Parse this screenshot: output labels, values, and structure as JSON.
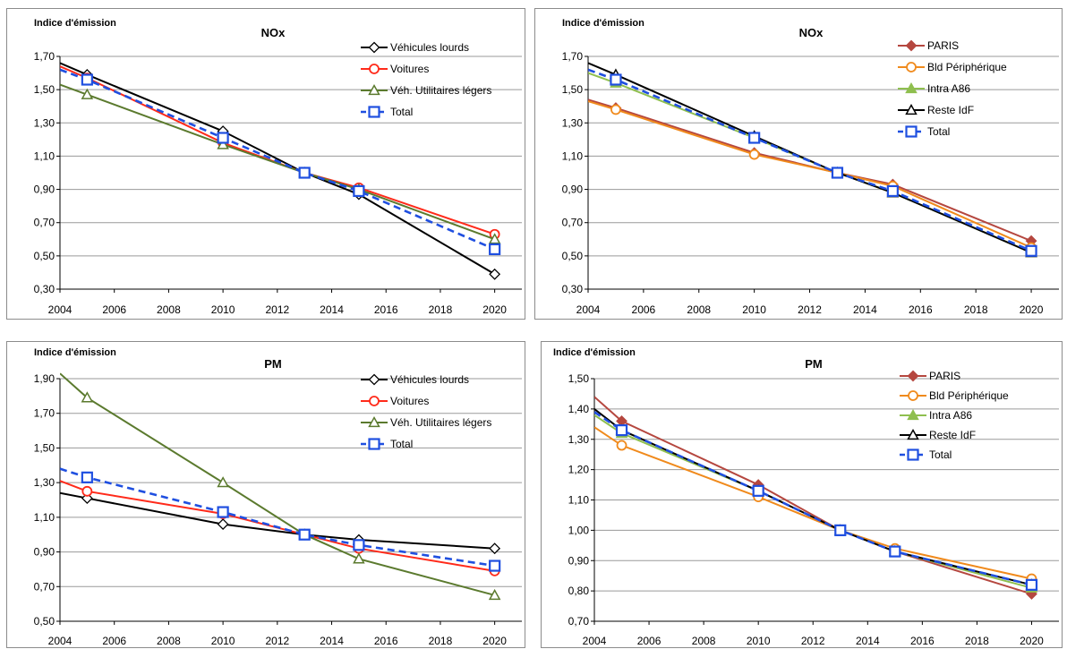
{
  "chart_data": [
    {
      "type": "line",
      "title": "NOx",
      "ylabel": "Indice d'émission",
      "ylim": [
        0.3,
        1.7
      ],
      "yticks": [
        "0,30",
        "0,50",
        "0,70",
        "0,90",
        "1,10",
        "1,30",
        "1,50",
        "1,70"
      ],
      "xlim": [
        2004,
        2021
      ],
      "xticks": [
        "2004",
        "2006",
        "2008",
        "2010",
        "2012",
        "2014",
        "2016",
        "2018",
        "2020"
      ],
      "grid": "horizontal",
      "legend": "top-right",
      "series": [
        {
          "name": "Véhicules lourds",
          "color": "#000000",
          "marker": "diamond-open",
          "dashed": false,
          "x": [
            2004,
            2005,
            2010,
            2013,
            2015,
            2020
          ],
          "values": [
            1.66,
            1.59,
            1.25,
            1.0,
            0.87,
            0.39
          ]
        },
        {
          "name": "Voitures",
          "color": "#ff2a1a",
          "marker": "circle-open",
          "dashed": false,
          "x": [
            2004,
            2005,
            2010,
            2013,
            2015,
            2020
          ],
          "values": [
            1.64,
            1.57,
            1.18,
            1.0,
            0.91,
            0.63
          ]
        },
        {
          "name": "Véh. Utilitaires légers",
          "color": "#5b7a2e",
          "marker": "triangle-open",
          "dashed": false,
          "x": [
            2004,
            2005,
            2010,
            2013,
            2015,
            2020
          ],
          "values": [
            1.53,
            1.47,
            1.17,
            1.0,
            0.9,
            0.6
          ]
        },
        {
          "name": "Total",
          "color": "#1f4fe0",
          "marker": "square-open",
          "dashed": true,
          "x": [
            2004,
            2005,
            2010,
            2013,
            2015,
            2020
          ],
          "values": [
            1.62,
            1.56,
            1.21,
            1.0,
            0.89,
            0.54
          ]
        }
      ]
    },
    {
      "type": "line",
      "title": "NOx",
      "ylabel": "Indice d'émission",
      "ylim": [
        0.3,
        1.7
      ],
      "yticks": [
        "0,30",
        "0,50",
        "0,70",
        "0,90",
        "1,10",
        "1,30",
        "1,50",
        "1,70"
      ],
      "xlim": [
        2004,
        2021
      ],
      "xticks": [
        "2004",
        "2006",
        "2008",
        "2010",
        "2012",
        "2014",
        "2016",
        "2018",
        "2020"
      ],
      "grid": "horizontal",
      "legend": "top-right",
      "series": [
        {
          "name": "PARIS",
          "color": "#b5473f",
          "marker": "diamond-filled",
          "dashed": false,
          "x": [
            2004,
            2005,
            2010,
            2013,
            2015,
            2020
          ],
          "values": [
            1.44,
            1.39,
            1.12,
            1.0,
            0.93,
            0.59
          ]
        },
        {
          "name": "Bld Périphérique",
          "color": "#f08a1c",
          "marker": "circle-open",
          "dashed": false,
          "x": [
            2004,
            2005,
            2010,
            2013,
            2015,
            2020
          ],
          "values": [
            1.43,
            1.38,
            1.11,
            1.0,
            0.92,
            0.55
          ]
        },
        {
          "name": "Intra A86",
          "color": "#8fbf4f",
          "marker": "triangle-filled",
          "dashed": false,
          "x": [
            2004,
            2005,
            2010,
            2013,
            2015,
            2020
          ],
          "values": [
            1.6,
            1.54,
            1.21,
            1.0,
            0.88,
            0.52
          ]
        },
        {
          "name": "Reste IdF",
          "color": "#000000",
          "marker": "triangle-open",
          "dashed": false,
          "x": [
            2004,
            2005,
            2010,
            2013,
            2015,
            2020
          ],
          "values": [
            1.66,
            1.59,
            1.22,
            1.0,
            0.88,
            0.52
          ]
        },
        {
          "name": "Total",
          "color": "#1f4fe0",
          "marker": "square-open",
          "dashed": true,
          "x": [
            2004,
            2005,
            2010,
            2013,
            2015,
            2020
          ],
          "values": [
            1.62,
            1.56,
            1.21,
            1.0,
            0.89,
            0.53
          ]
        }
      ]
    },
    {
      "type": "line",
      "title": "PM",
      "ylabel": "Indice d'émission",
      "ylim": [
        0.5,
        1.9
      ],
      "yticks": [
        "0,50",
        "0,70",
        "0,90",
        "1,10",
        "1,30",
        "1,50",
        "1,70",
        "1,90"
      ],
      "xlim": [
        2004,
        2021
      ],
      "xticks": [
        "2004",
        "2006",
        "2008",
        "2010",
        "2012",
        "2014",
        "2016",
        "2018",
        "2020"
      ],
      "grid": "horizontal",
      "legend": "top-right",
      "series": [
        {
          "name": "Véhicules lourds",
          "color": "#000000",
          "marker": "diamond-open",
          "dashed": false,
          "x": [
            2004,
            2005,
            2010,
            2013,
            2015,
            2020
          ],
          "values": [
            1.24,
            1.21,
            1.06,
            1.0,
            0.97,
            0.92
          ]
        },
        {
          "name": "Voitures",
          "color": "#ff2a1a",
          "marker": "circle-open",
          "dashed": false,
          "x": [
            2004,
            2005,
            2010,
            2013,
            2015,
            2020
          ],
          "values": [
            1.31,
            1.25,
            1.12,
            1.0,
            0.92,
            0.79
          ]
        },
        {
          "name": "Véh. Utilitaires légers",
          "color": "#5b7a2e",
          "marker": "triangle-open",
          "dashed": false,
          "x": [
            2004,
            2005,
            2010,
            2013,
            2015,
            2020
          ],
          "values": [
            1.93,
            1.79,
            1.3,
            1.0,
            0.86,
            0.65
          ]
        },
        {
          "name": "Total",
          "color": "#1f4fe0",
          "marker": "square-open",
          "dashed": true,
          "x": [
            2004,
            2005,
            2010,
            2013,
            2015,
            2020
          ],
          "values": [
            1.38,
            1.33,
            1.13,
            1.0,
            0.94,
            0.82
          ]
        }
      ]
    },
    {
      "type": "line",
      "title": "PM",
      "ylabel": "Indice d'émission",
      "ylim": [
        0.7,
        1.5
      ],
      "yticks": [
        "0,70",
        "0,80",
        "0,90",
        "1,00",
        "1,10",
        "1,20",
        "1,30",
        "1,40",
        "1,50"
      ],
      "xlim": [
        2004,
        2021
      ],
      "xticks": [
        "2004",
        "2006",
        "2008",
        "2010",
        "2012",
        "2014",
        "2016",
        "2018",
        "2020"
      ],
      "grid": "horizontal",
      "legend": "top-right",
      "series": [
        {
          "name": "PARIS",
          "color": "#b5473f",
          "marker": "diamond-filled",
          "dashed": false,
          "x": [
            2004,
            2005,
            2010,
            2013,
            2015,
            2020
          ],
          "values": [
            1.44,
            1.36,
            1.15,
            1.0,
            0.93,
            0.79
          ]
        },
        {
          "name": "Bld Périphérique",
          "color": "#f08a1c",
          "marker": "circle-open",
          "dashed": false,
          "x": [
            2004,
            2005,
            2010,
            2013,
            2015,
            2020
          ],
          "values": [
            1.34,
            1.28,
            1.11,
            1.0,
            0.94,
            0.84
          ]
        },
        {
          "name": "Intra A86",
          "color": "#8fbf4f",
          "marker": "triangle-filled",
          "dashed": false,
          "x": [
            2004,
            2005,
            2010,
            2013,
            2015,
            2020
          ],
          "values": [
            1.38,
            1.32,
            1.13,
            1.0,
            0.93,
            0.81
          ]
        },
        {
          "name": "Reste IdF",
          "color": "#000000",
          "marker": "triangle-open",
          "dashed": false,
          "x": [
            2004,
            2005,
            2010,
            2013,
            2015,
            2020
          ],
          "values": [
            1.4,
            1.33,
            1.13,
            1.0,
            0.93,
            0.82
          ]
        },
        {
          "name": "Total",
          "color": "#1f4fe0",
          "marker": "square-open",
          "dashed": true,
          "x": [
            2004,
            2005,
            2010,
            2013,
            2015,
            2020
          ],
          "values": [
            1.39,
            1.33,
            1.13,
            1.0,
            0.93,
            0.82
          ]
        }
      ]
    }
  ]
}
